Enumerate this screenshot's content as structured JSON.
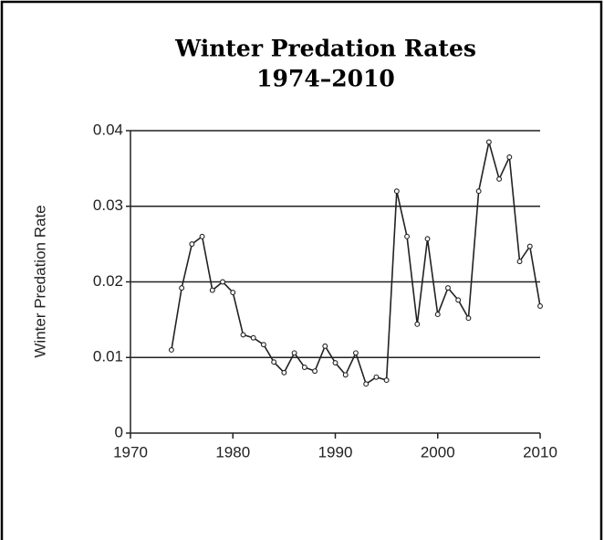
{
  "chart_data": {
    "type": "line",
    "title": "Winter Predation Rates",
    "subtitle": "1974–2010",
    "y_label": "Winter Predation Rate",
    "x": [
      1974,
      1975,
      1976,
      1977,
      1978,
      1979,
      1980,
      1981,
      1982,
      1983,
      1984,
      1985,
      1986,
      1987,
      1988,
      1989,
      1990,
      1991,
      1992,
      1993,
      1994,
      1995,
      1996,
      1997,
      1998,
      1999,
      2000,
      2001,
      2002,
      2003,
      2004,
      2005,
      2006,
      2007,
      2008,
      2009,
      2010
    ],
    "series": [
      {
        "name": "Winter Predation Rate",
        "color": "#222222",
        "values": [
          0.011,
          0.0192,
          0.025,
          0.026,
          0.0189,
          0.02,
          0.0186,
          0.013,
          0.0126,
          0.0117,
          0.0094,
          0.008,
          0.0106,
          0.0087,
          0.0082,
          0.0115,
          0.0093,
          0.0077,
          0.0106,
          0.0065,
          0.0074,
          0.007,
          0.032,
          0.026,
          0.0144,
          0.0257,
          0.0157,
          0.0192,
          0.0176,
          0.0152,
          0.032,
          0.0385,
          0.0336,
          0.0365,
          0.0227,
          0.0247,
          0.0168
        ]
      }
    ],
    "xlim": [
      1970,
      2010
    ],
    "xticks": [
      1970,
      1980,
      1990,
      2000,
      2010
    ],
    "ylim": [
      0,
      0.04
    ],
    "yticks": [
      0,
      0.01,
      0.02,
      0.03,
      0.04
    ],
    "grid": true
  }
}
